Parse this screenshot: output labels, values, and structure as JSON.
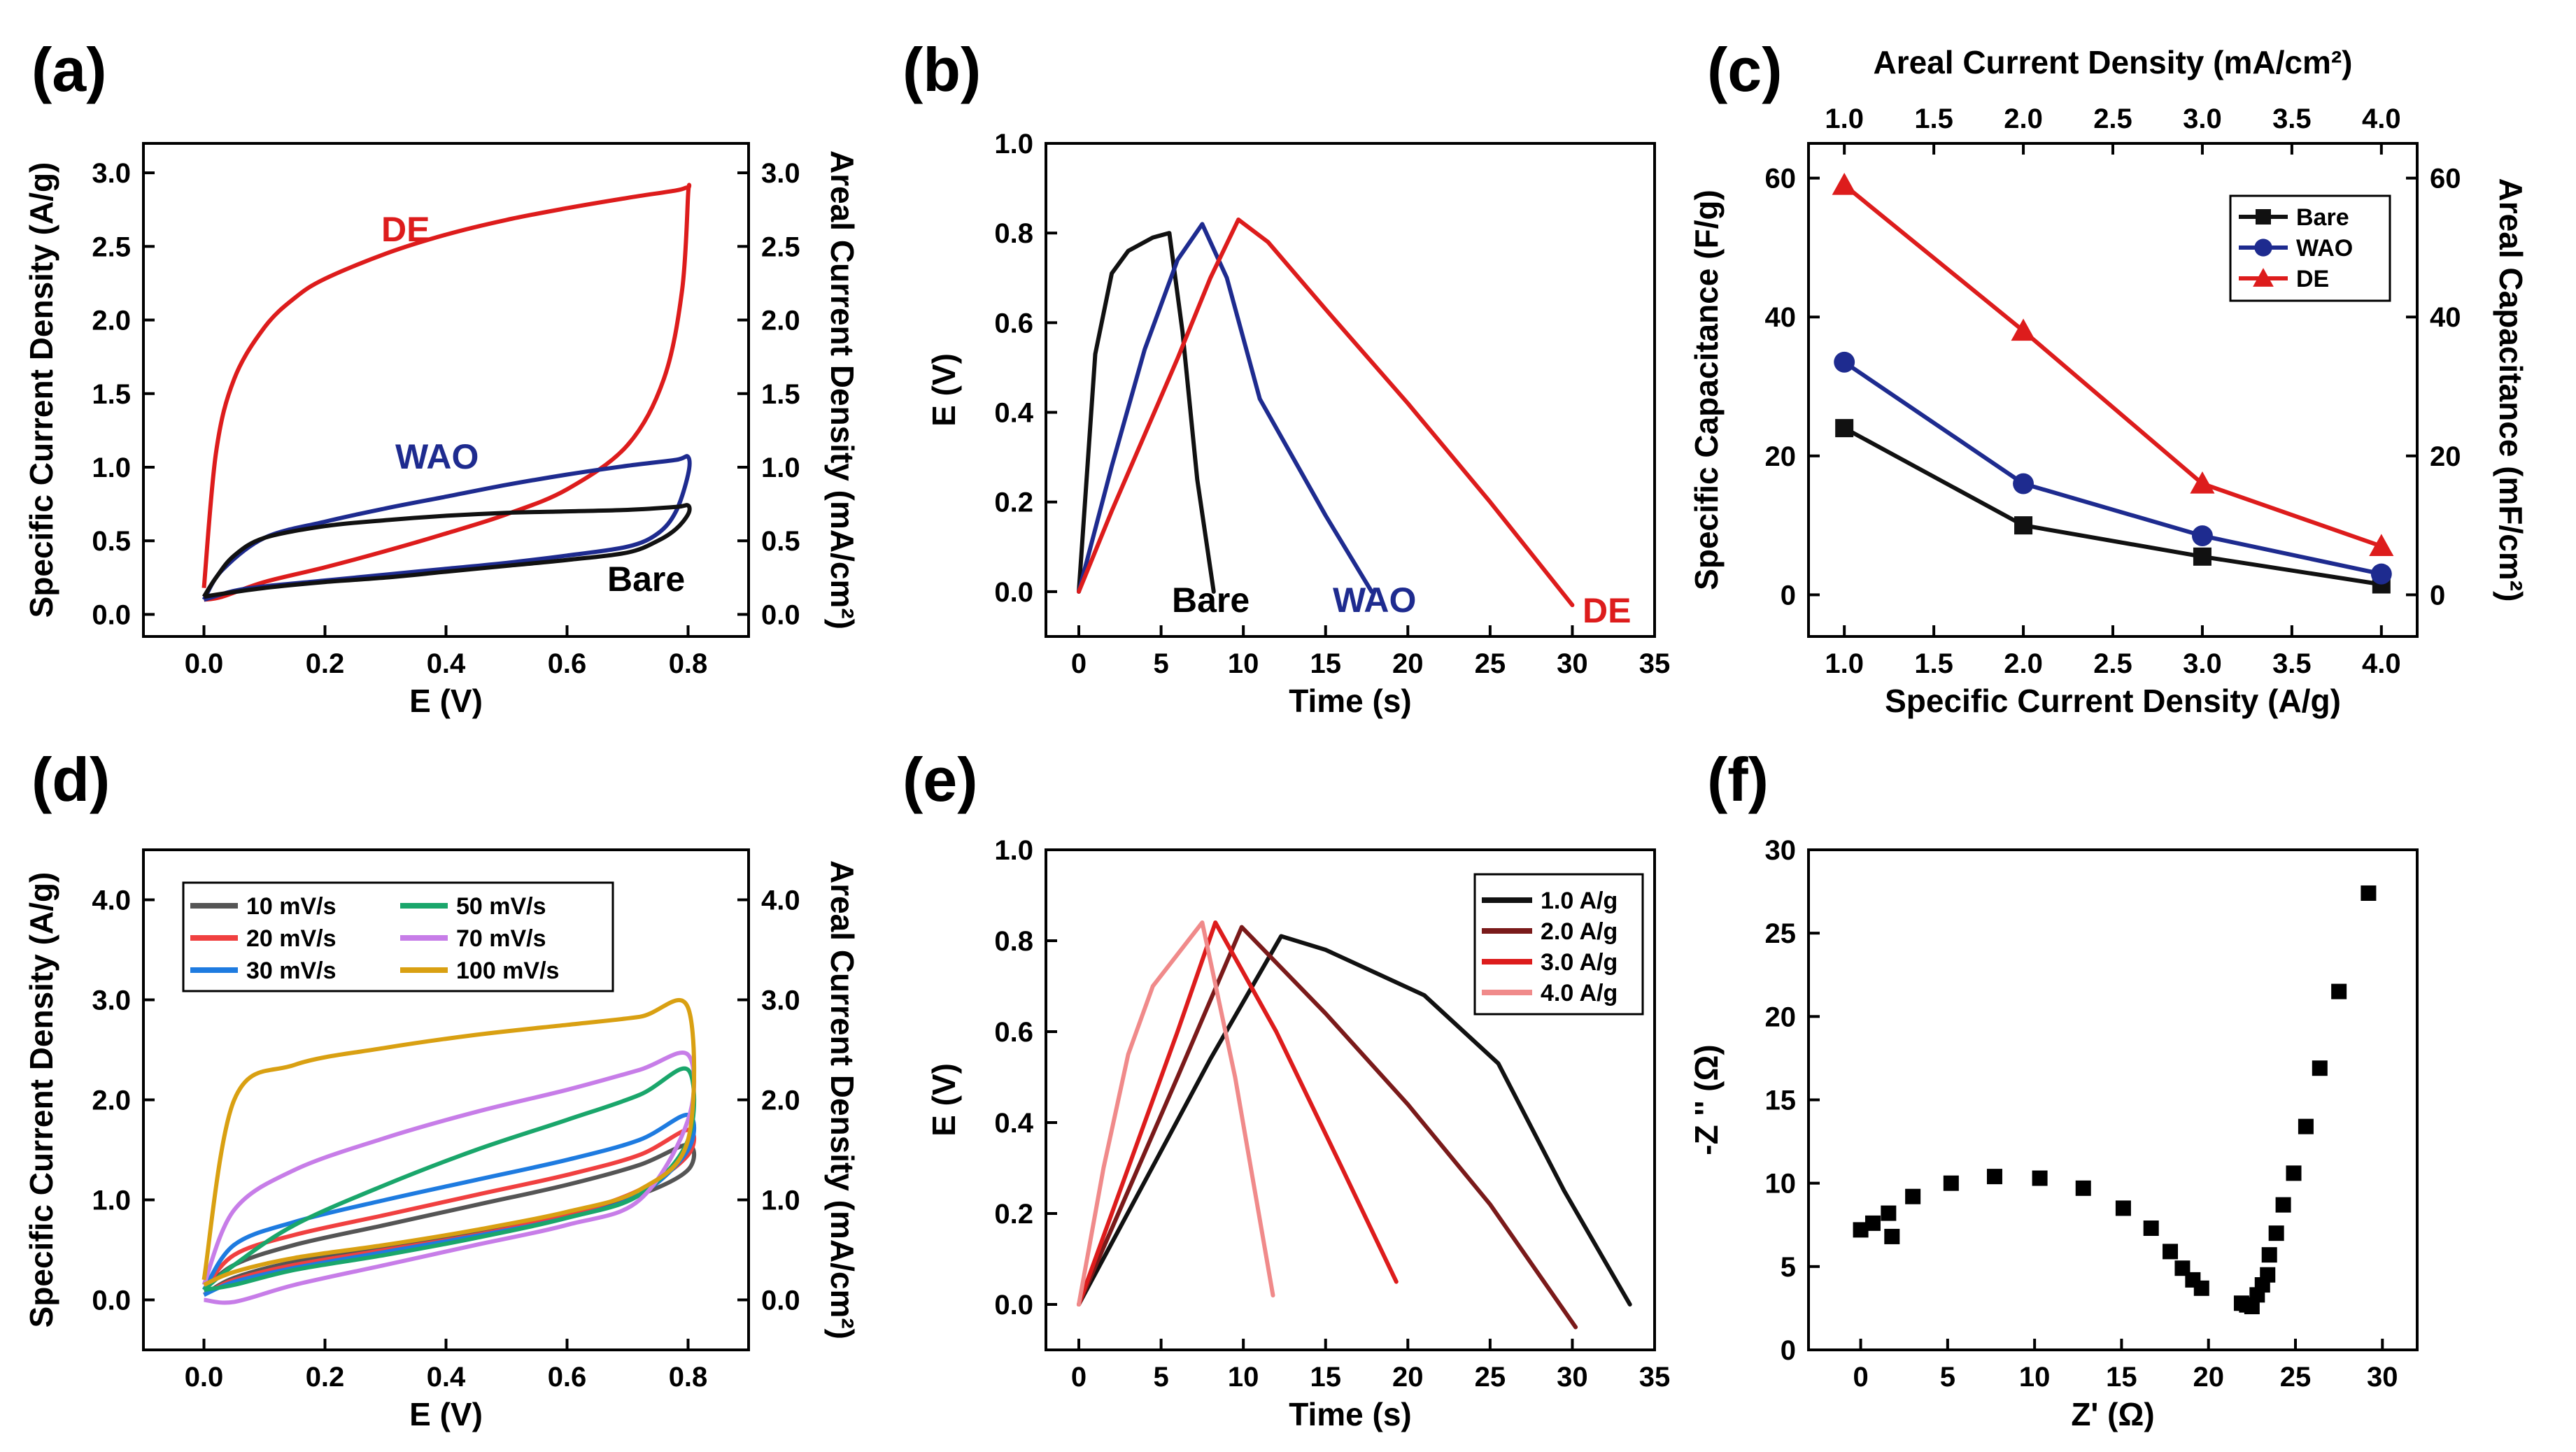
{
  "chart_data": [
    {
      "panel": "(a)",
      "type": "line",
      "xlabel": "E (V)",
      "ylabel": "Specific Current Density (A/g)",
      "y2label": "Areal Current Density (mA/cm²)",
      "xlim": [
        -0.1,
        0.9
      ],
      "ylim": [
        -0.15,
        3.2
      ],
      "xticks": [
        "0.0",
        "0.2",
        "0.4",
        "0.6",
        "0.8"
      ],
      "yticks": [
        "0.0",
        "0.5",
        "1.0",
        "1.5",
        "2.0",
        "2.5",
        "3.0"
      ],
      "series": [
        {
          "name": "DE",
          "color": "#dd1c1c",
          "label": "DE",
          "x": [
            0.0,
            0.02,
            0.05,
            0.1,
            0.15,
            0.2,
            0.3,
            0.4,
            0.5,
            0.6,
            0.7,
            0.78,
            0.8,
            0.8,
            0.79,
            0.76,
            0.7,
            0.6,
            0.5,
            0.4,
            0.3,
            0.2,
            0.1,
            0.03,
            0.0
          ],
          "y": [
            0.18,
            1.1,
            1.6,
            1.95,
            2.15,
            2.28,
            2.45,
            2.58,
            2.68,
            2.76,
            2.83,
            2.88,
            2.9,
            2.85,
            2.2,
            1.6,
            1.15,
            0.85,
            0.68,
            0.55,
            0.43,
            0.32,
            0.22,
            0.12,
            0.1
          ]
        },
        {
          "name": "WAO",
          "color": "#1e2b8f",
          "label": "WAO",
          "x": [
            0.0,
            0.03,
            0.1,
            0.2,
            0.3,
            0.4,
            0.5,
            0.6,
            0.7,
            0.78,
            0.8,
            0.8,
            0.78,
            0.75,
            0.7,
            0.6,
            0.5,
            0.4,
            0.3,
            0.2,
            0.1,
            0.05,
            0.0
          ],
          "y": [
            0.1,
            0.3,
            0.52,
            0.63,
            0.72,
            0.8,
            0.88,
            0.95,
            1.01,
            1.05,
            1.07,
            0.95,
            0.7,
            0.55,
            0.46,
            0.4,
            0.35,
            0.31,
            0.27,
            0.23,
            0.19,
            0.16,
            0.1
          ]
        },
        {
          "name": "Bare",
          "color": "#111111",
          "label": "Bare",
          "x": [
            0.0,
            0.02,
            0.05,
            0.1,
            0.2,
            0.3,
            0.4,
            0.5,
            0.6,
            0.7,
            0.78,
            0.8,
            0.8,
            0.78,
            0.75,
            0.7,
            0.6,
            0.5,
            0.4,
            0.3,
            0.2,
            0.1,
            0.03,
            0.0
          ],
          "y": [
            0.12,
            0.25,
            0.4,
            0.52,
            0.6,
            0.64,
            0.67,
            0.69,
            0.7,
            0.71,
            0.73,
            0.74,
            0.68,
            0.58,
            0.5,
            0.42,
            0.37,
            0.33,
            0.29,
            0.25,
            0.22,
            0.18,
            0.14,
            0.12
          ]
        }
      ]
    },
    {
      "panel": "(b)",
      "type": "line",
      "xlabel": "Time (s)",
      "ylabel": "E (V)",
      "xlim": [
        -2,
        35
      ],
      "ylim": [
        -0.1,
        1.0
      ],
      "xticks": [
        "0",
        "5",
        "10",
        "15",
        "20",
        "25",
        "30",
        "35"
      ],
      "yticks": [
        "0.0",
        "0.2",
        "0.4",
        "0.6",
        "0.8",
        "1.0"
      ],
      "series": [
        {
          "name": "Bare",
          "color": "#111111",
          "label": "Bare",
          "x": [
            0,
            1,
            2,
            3,
            4.5,
            5.5,
            6.3,
            7.2,
            8.2
          ],
          "y": [
            0.0,
            0.53,
            0.71,
            0.76,
            0.79,
            0.8,
            0.58,
            0.25,
            0.0
          ]
        },
        {
          "name": "WAO",
          "color": "#1e2b8f",
          "label": "WAO",
          "x": [
            0,
            2,
            4,
            6,
            7.5,
            9,
            11,
            13,
            15,
            17.8
          ],
          "y": [
            0.0,
            0.28,
            0.54,
            0.74,
            0.82,
            0.7,
            0.43,
            0.3,
            0.17,
            0.0
          ]
        },
        {
          "name": "DE",
          "color": "#dd1c1c",
          "label": "DE",
          "x": [
            0,
            2,
            4,
            6,
            8,
            9.7,
            11.5,
            15,
            20,
            25,
            30
          ],
          "y": [
            0.0,
            0.18,
            0.35,
            0.52,
            0.7,
            0.83,
            0.78,
            0.63,
            0.42,
            0.2,
            -0.03
          ]
        }
      ]
    },
    {
      "panel": "(c)",
      "type": "line",
      "xlabel": "Specific Current Density (A/g)",
      "x2label": "Areal Current Density (mA/cm²)",
      "ylabel": "Specific Capacitance (F/g)",
      "y2label": "Areal Capacitance (mF/cm²)",
      "xlim": [
        0.8,
        4.2
      ],
      "ylim": [
        -6,
        65
      ],
      "xticks": [
        "1.0",
        "1.5",
        "2.0",
        "2.5",
        "3.0",
        "3.5",
        "4.0"
      ],
      "yticks": [
        "0",
        "20",
        "40",
        "60"
      ],
      "legend": "top-right",
      "series": [
        {
          "name": "Bare",
          "color": "#111111",
          "marker": "square",
          "x": [
            1,
            2,
            3,
            4
          ],
          "y": [
            24,
            10,
            5.5,
            1.5
          ]
        },
        {
          "name": "WAO",
          "color": "#1e2b8f",
          "marker": "circle",
          "x": [
            1,
            2,
            3,
            4
          ],
          "y": [
            33.5,
            16,
            8.5,
            3
          ]
        },
        {
          "name": "DE",
          "color": "#dd1c1c",
          "marker": "triangle",
          "x": [
            1,
            2,
            3,
            4
          ],
          "y": [
            59,
            38,
            16,
            7
          ]
        }
      ]
    },
    {
      "panel": "(d)",
      "type": "line",
      "xlabel": "E (V)",
      "ylabel": "Specific Current Density (A/g)",
      "y2label": "Areal Current Density (mA/cm²)",
      "xlim": [
        -0.1,
        0.9
      ],
      "ylim": [
        -0.5,
        4.5
      ],
      "xticks": [
        "0.0",
        "0.2",
        "0.4",
        "0.6",
        "0.8"
      ],
      "yticks": [
        "0.0",
        "1.0",
        "2.0",
        "3.0",
        "4.0"
      ],
      "legend": "top-left",
      "series": [
        {
          "name": "10 mV/s",
          "color": "#555555",
          "top": [
            0.1,
            0.35,
            0.55,
            0.75,
            0.95,
            1.15,
            1.35,
            1.55
          ],
          "bottom": [
            0.05,
            0.22,
            0.38,
            0.52,
            0.68,
            0.85,
            1.05,
            1.3
          ]
        },
        {
          "name": "20 mV/s",
          "color": "#f04040",
          "top": [
            0.1,
            0.45,
            0.65,
            0.85,
            1.05,
            1.25,
            1.45,
            1.7
          ],
          "bottom": [
            0.05,
            0.2,
            0.35,
            0.5,
            0.65,
            0.85,
            1.1,
            1.45
          ]
        },
        {
          "name": "30 mV/s",
          "color": "#1e7be0",
          "top": [
            0.1,
            0.55,
            0.78,
            1.0,
            1.2,
            1.4,
            1.6,
            1.85
          ],
          "bottom": [
            0.05,
            0.18,
            0.32,
            0.48,
            0.64,
            0.82,
            1.05,
            1.5
          ]
        },
        {
          "name": "50 mV/s",
          "color": "#1aa66b",
          "top": [
            0.1,
            0.35,
            0.75,
            1.15,
            1.5,
            1.8,
            2.05,
            2.3
          ],
          "bottom": [
            0.1,
            0.15,
            0.3,
            0.45,
            0.62,
            0.82,
            1.05,
            1.6
          ]
        },
        {
          "name": "70 mV/s",
          "color": "#c77de8",
          "top": [
            0.15,
            0.9,
            1.3,
            1.62,
            1.88,
            2.1,
            2.3,
            2.45
          ],
          "bottom": [
            0.0,
            -0.02,
            0.15,
            0.35,
            0.55,
            0.75,
            1.0,
            1.8
          ]
        },
        {
          "name": "100 mV/s",
          "color": "#d9a012",
          "top": [
            0.2,
            2.0,
            2.35,
            2.52,
            2.65,
            2.75,
            2.83,
            2.92
          ],
          "bottom": [
            0.15,
            0.28,
            0.42,
            0.55,
            0.7,
            0.88,
            1.1,
            1.6
          ]
        }
      ]
    },
    {
      "panel": "(e)",
      "type": "line",
      "xlabel": "Time (s)",
      "ylabel": "E (V)",
      "xlim": [
        -2,
        35
      ],
      "ylim": [
        -0.1,
        1.0
      ],
      "xticks": [
        "0",
        "5",
        "10",
        "15",
        "20",
        "25",
        "30",
        "35"
      ],
      "yticks": [
        "0.0",
        "0.2",
        "0.4",
        "0.6",
        "0.8",
        "1.0"
      ],
      "legend": "top-right",
      "series": [
        {
          "name": "1.0 A/g",
          "color": "#111111",
          "x": [
            0,
            4,
            8,
            12.3,
            15,
            18,
            21,
            25.5,
            29.5,
            33.5
          ],
          "y": [
            0.0,
            0.27,
            0.54,
            0.81,
            0.78,
            0.73,
            0.68,
            0.53,
            0.25,
            0.0
          ]
        },
        {
          "name": "2.0 A/g",
          "color": "#7a1a1a",
          "x": [
            0,
            3,
            6,
            9.9,
            15,
            20,
            25,
            30.2
          ],
          "y": [
            0.0,
            0.25,
            0.5,
            0.83,
            0.64,
            0.44,
            0.22,
            -0.05
          ]
        },
        {
          "name": "3.0 A/g",
          "color": "#dd1c1c",
          "x": [
            0,
            2,
            4,
            6,
            8.3,
            12,
            16,
            19.3
          ],
          "y": [
            0.0,
            0.2,
            0.4,
            0.6,
            0.84,
            0.6,
            0.3,
            0.05
          ]
        },
        {
          "name": "4.0 A/g",
          "color": "#f08a8a",
          "x": [
            0,
            1.5,
            3,
            4.5,
            7.5,
            9.5,
            11.8
          ],
          "y": [
            0.0,
            0.3,
            0.55,
            0.7,
            0.84,
            0.5,
            0.02
          ]
        }
      ]
    },
    {
      "panel": "(f)",
      "type": "scatter",
      "xlabel": "Z' (Ω)",
      "ylabel": "-Z '' (Ω)",
      "xlim": [
        -3,
        32
      ],
      "ylim": [
        0,
        30
      ],
      "xticks": [
        "0",
        "5",
        "10",
        "15",
        "20",
        "25",
        "30"
      ],
      "yticks": [
        "0",
        "5",
        "10",
        "15",
        "20",
        "25",
        "30"
      ],
      "series": [
        {
          "name": "Impedance",
          "color": "#000000",
          "marker": "square",
          "x": [
            0,
            0.7,
            1.6,
            1.8,
            3,
            5.2,
            7.7,
            10.3,
            12.8,
            15.1,
            16.7,
            17.8,
            18.5,
            19.1,
            19.6,
            21.9,
            22.2,
            22.5,
            22.8,
            23.1,
            23.4,
            23.5,
            23.9,
            24.3,
            24.9,
            25.6,
            26.4,
            27.5,
            29.2
          ],
          "y": [
            7.2,
            7.6,
            8.2,
            6.8,
            9.2,
            10.0,
            10.4,
            10.3,
            9.7,
            8.5,
            7.3,
            5.9,
            4.9,
            4.2,
            3.7,
            2.8,
            2.7,
            2.6,
            3.3,
            3.9,
            4.5,
            5.7,
            7.0,
            8.7,
            10.6,
            13.4,
            16.9,
            21.5,
            27.4
          ]
        }
      ]
    }
  ],
  "panels": [
    {
      "label": "(a)"
    },
    {
      "label": "(b)"
    },
    {
      "label": "(c)"
    },
    {
      "label": "(d)"
    },
    {
      "label": "(e)"
    },
    {
      "label": "(f)"
    }
  ],
  "curve_labels": {
    "de": "DE",
    "wao": "WAO",
    "bare": "Bare"
  }
}
